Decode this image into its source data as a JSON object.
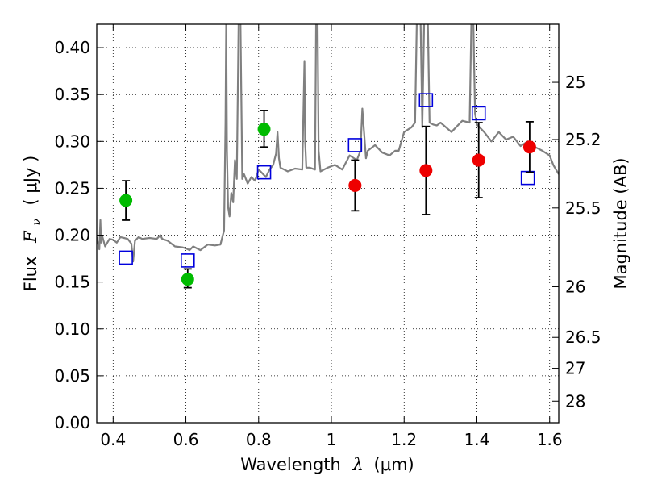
{
  "chart_data": {
    "type": "scatter",
    "title": "",
    "xlabel": {
      "text": "Wavelength",
      "symbol": "λ",
      "unit": "(μm)"
    },
    "ylabel": {
      "text": "Flux",
      "symbol": "F",
      "subscript": "ν",
      "unit": "( μJy )"
    },
    "y2label": "Magnitude (AB)",
    "xlim": [
      0.355,
      1.625
    ],
    "ylim": [
      0.0,
      0.425
    ],
    "grid": true,
    "x_ticks": [
      0.4,
      0.6,
      0.8,
      1.0,
      1.2,
      1.4,
      1.6
    ],
    "x_tick_labels": [
      "0.4",
      "0.6",
      "0.8",
      "1",
      "1.2",
      "1.4",
      "1.6"
    ],
    "y_ticks": [
      0.0,
      0.05,
      0.1,
      0.15,
      0.2,
      0.25,
      0.3,
      0.35,
      0.4
    ],
    "y_tick_labels": [
      "0.00",
      "0.05",
      "0.10",
      "0.15",
      "0.20",
      "0.25",
      "0.30",
      "0.35",
      "0.40"
    ],
    "y2_ticks": [
      {
        "label": "25",
        "flux": 0.363
      },
      {
        "label": "25.2",
        "flux": 0.302
      },
      {
        "label": "25.5",
        "flux": 0.229
      },
      {
        "label": "26",
        "flux": 0.145
      },
      {
        "label": "26.5",
        "flux": 0.091
      },
      {
        "label": "27",
        "flux": 0.058
      },
      {
        "label": "28",
        "flux": 0.023
      }
    ],
    "series": [
      {
        "marker": "circle",
        "color": "#00bb00",
        "x": [
          0.435,
          0.605,
          0.815
        ],
        "y": [
          0.237,
          0.153,
          0.313
        ],
        "yerr_low": [
          0.021,
          0.009,
          0.019
        ],
        "yerr_high": [
          0.021,
          0.011,
          0.02
        ]
      },
      {
        "marker": "circle",
        "color": "#ee0000",
        "x": [
          1.065,
          1.26,
          1.405,
          1.545
        ],
        "y": [
          0.253,
          0.269,
          0.28,
          0.294
        ],
        "yerr_low": [
          0.027,
          0.047,
          0.04,
          0.027
        ],
        "yerr_high": [
          0.027,
          0.047,
          0.04,
          0.027
        ]
      },
      {
        "marker": "open-square",
        "color": "#0000dd",
        "x": [
          0.435,
          0.605,
          0.815,
          1.065,
          1.26,
          1.405,
          1.54
        ],
        "y": [
          0.176,
          0.173,
          0.267,
          0.296,
          0.344,
          0.33,
          0.261
        ]
      },
      {
        "marker": "line",
        "color": "#808080",
        "x": [
          0.355,
          0.362,
          0.365,
          0.367,
          0.37,
          0.378,
          0.39,
          0.4,
          0.41,
          0.42,
          0.43,
          0.44,
          0.45,
          0.455,
          0.46,
          0.47,
          0.48,
          0.5,
          0.52,
          0.53,
          0.535,
          0.55,
          0.57,
          0.59,
          0.6,
          0.61,
          0.62,
          0.64,
          0.66,
          0.68,
          0.695,
          0.705,
          0.709,
          0.711,
          0.713,
          0.716,
          0.72,
          0.725,
          0.73,
          0.735,
          0.74,
          0.745,
          0.75,
          0.755,
          0.76,
          0.77,
          0.78,
          0.79,
          0.8,
          0.81,
          0.82,
          0.83,
          0.84,
          0.848,
          0.852,
          0.856,
          0.86,
          0.88,
          0.9,
          0.92,
          0.926,
          0.928,
          0.931,
          0.94,
          0.955,
          0.958,
          0.962,
          0.965,
          0.97,
          0.99,
          1.01,
          1.03,
          1.05,
          1.07,
          1.08,
          1.085,
          1.095,
          1.1,
          1.12,
          1.14,
          1.16,
          1.175,
          1.185,
          1.2,
          1.22,
          1.23,
          1.235,
          1.245,
          1.25,
          1.255,
          1.265,
          1.27,
          1.28,
          1.29,
          1.3,
          1.33,
          1.36,
          1.38,
          1.385,
          1.39,
          1.395,
          1.4,
          1.42,
          1.44,
          1.46,
          1.48,
          1.5,
          1.52,
          1.54,
          1.56,
          1.58,
          1.6,
          1.61,
          1.625
        ],
        "y": [
          0.198,
          0.185,
          0.216,
          0.192,
          0.199,
          0.188,
          0.196,
          0.195,
          0.192,
          0.198,
          0.197,
          0.196,
          0.191,
          0.172,
          0.194,
          0.198,
          0.196,
          0.197,
          0.196,
          0.2,
          0.196,
          0.194,
          0.188,
          0.187,
          0.186,
          0.184,
          0.188,
          0.184,
          0.19,
          0.189,
          0.19,
          0.205,
          0.32,
          0.43,
          0.29,
          0.23,
          0.22,
          0.245,
          0.235,
          0.28,
          0.26,
          0.43,
          0.43,
          0.26,
          0.265,
          0.255,
          0.262,
          0.258,
          0.27,
          0.266,
          0.262,
          0.27,
          0.275,
          0.287,
          0.31,
          0.282,
          0.272,
          0.268,
          0.271,
          0.27,
          0.385,
          0.3,
          0.272,
          0.272,
          0.27,
          0.43,
          0.43,
          0.29,
          0.268,
          0.272,
          0.275,
          0.27,
          0.285,
          0.28,
          0.29,
          0.335,
          0.282,
          0.29,
          0.296,
          0.288,
          0.285,
          0.29,
          0.29,
          0.31,
          0.315,
          0.32,
          0.43,
          0.43,
          0.315,
          0.43,
          0.43,
          0.32,
          0.318,
          0.317,
          0.32,
          0.31,
          0.322,
          0.32,
          0.43,
          0.43,
          0.33,
          0.318,
          0.31,
          0.3,
          0.31,
          0.302,
          0.305,
          0.295,
          0.3,
          0.294,
          0.29,
          0.285,
          0.275,
          0.265
        ]
      }
    ]
  }
}
